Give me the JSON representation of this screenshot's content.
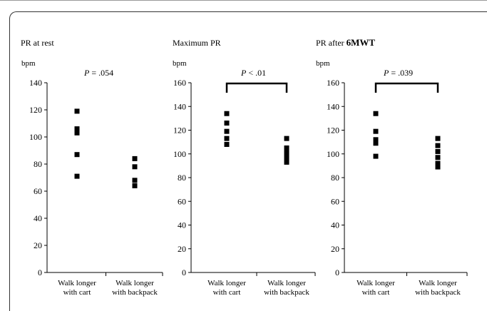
{
  "chart_data": [
    {
      "type": "scatter",
      "title": "PR at rest",
      "unit_label": "bpm",
      "ylim": [
        0,
        140
      ],
      "yticks": [
        0,
        20,
        40,
        60,
        80,
        100,
        120,
        140
      ],
      "categories": [
        "Walk longer with cart",
        "Walk longer with backpack"
      ],
      "category_lines": [
        [
          "Walk longer",
          "with cart"
        ],
        [
          "Walk longer",
          "with backpack"
        ]
      ],
      "series": [
        {
          "category": "Walk longer with cart",
          "values": [
            119,
            106,
            103,
            87,
            71
          ]
        },
        {
          "category": "Walk longer with backpack",
          "values": [
            84,
            78,
            68,
            64
          ]
        }
      ],
      "p_label": "P",
      "p_text": " =  .054",
      "bracket": false
    },
    {
      "type": "scatter",
      "title": "Maximum PR",
      "unit_label": "bpm",
      "ylim": [
        0,
        160
      ],
      "yticks": [
        0,
        20,
        40,
        60,
        80,
        100,
        120,
        140,
        160
      ],
      "categories": [
        "Walk longer with cart",
        "Walk longer with backpack"
      ],
      "category_lines": [
        [
          "Walk longer",
          "with cart"
        ],
        [
          "Walk longer",
          "with backpack"
        ]
      ],
      "series": [
        {
          "category": "Walk longer with cart",
          "values": [
            134,
            126,
            119,
            113,
            108
          ]
        },
        {
          "category": "Walk longer with backpack",
          "values": [
            113,
            105,
            101,
            97,
            93
          ]
        }
      ],
      "p_label": "P",
      "p_text": " < .01",
      "bracket": true
    },
    {
      "type": "scatter",
      "title_prefix": "PR after ",
      "title_bold": "6MWT",
      "unit_label": "bpm",
      "ylim": [
        0,
        160
      ],
      "yticks": [
        0,
        20,
        40,
        60,
        80,
        100,
        120,
        140,
        160
      ],
      "categories": [
        "Walk longer with cart",
        "Walk longer with backpack"
      ],
      "category_lines": [
        [
          "Walk longer",
          "with cart"
        ],
        [
          "Walk longer",
          "with backpack"
        ]
      ],
      "series": [
        {
          "category": "Walk longer with cart",
          "values": [
            134,
            119,
            112,
            109,
            98
          ]
        },
        {
          "category": "Walk longer with backpack",
          "values": [
            113,
            107,
            102,
            97,
            92,
            89
          ]
        }
      ],
      "p_label": "P",
      "p_text": " = .039",
      "bracket": true
    }
  ]
}
